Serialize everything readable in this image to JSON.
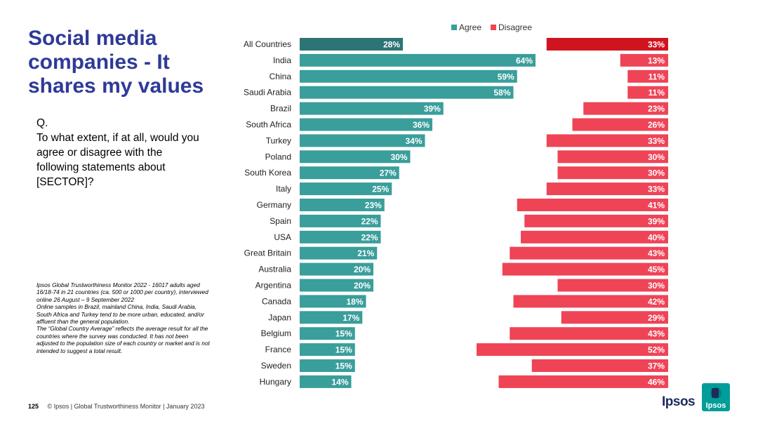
{
  "title": "Social media companies - It shares my values",
  "question": {
    "label": "Q.",
    "text": "To what extent, if at all, would you agree or disagree with the following statements about [SECTOR]?"
  },
  "notes": [
    "Ipsos Global Trustworthiness Monitor 2022 - 16017 adults aged 16/18-74 in 21 countries (ca. 500 or 1000 per country), interviewed online 26 August – 9 September 2022",
    "Online samples in Brazil, mainland China, India, Saudi Arabia, South Africa and Turkey tend to be more urban, educated, and/or affluent than the general population.",
    "The “Global Country Average” reflects the average result for all the countries where the survey was conducted. It has not been adjusted to the population size of each country or market and is not intended to suggest a total result."
  ],
  "footer": {
    "page_number": "125",
    "text": "© Ipsos | Global Trustworthiness Monitor | January 2023"
  },
  "logo": {
    "text": "Ipsos",
    "badge_text": "Ipsos"
  },
  "colors": {
    "agree": "#3a9e9b",
    "agree_highlight": "#2d7476",
    "disagree": "#ef4456",
    "disagree_highlight": "#d0141f",
    "title": "#2e3a97"
  },
  "chart_data": {
    "type": "bar",
    "orientation": "horizontal-diverging",
    "legend_position": "top",
    "categories": [
      "All Countries",
      "India",
      "China",
      "Saudi Arabia",
      "Brazil",
      "South Africa",
      "Turkey",
      "Poland",
      "South Korea",
      "Italy",
      "Germany",
      "Spain",
      "USA",
      "Great Britain",
      "Australia",
      "Argentina",
      "Canada",
      "Japan",
      "Belgium",
      "France",
      "Sweden",
      "Hungary"
    ],
    "series": [
      {
        "name": "Agree",
        "values": [
          28,
          64,
          59,
          58,
          39,
          36,
          34,
          30,
          27,
          25,
          23,
          22,
          22,
          21,
          20,
          20,
          18,
          17,
          15,
          15,
          15,
          14
        ]
      },
      {
        "name": "Disagree",
        "values": [
          33,
          13,
          11,
          11,
          23,
          26,
          33,
          30,
          30,
          33,
          41,
          39,
          40,
          43,
          45,
          30,
          42,
          29,
          43,
          52,
          37,
          46
        ]
      }
    ],
    "value_suffix": "%",
    "highlight_category": "All Countries"
  }
}
